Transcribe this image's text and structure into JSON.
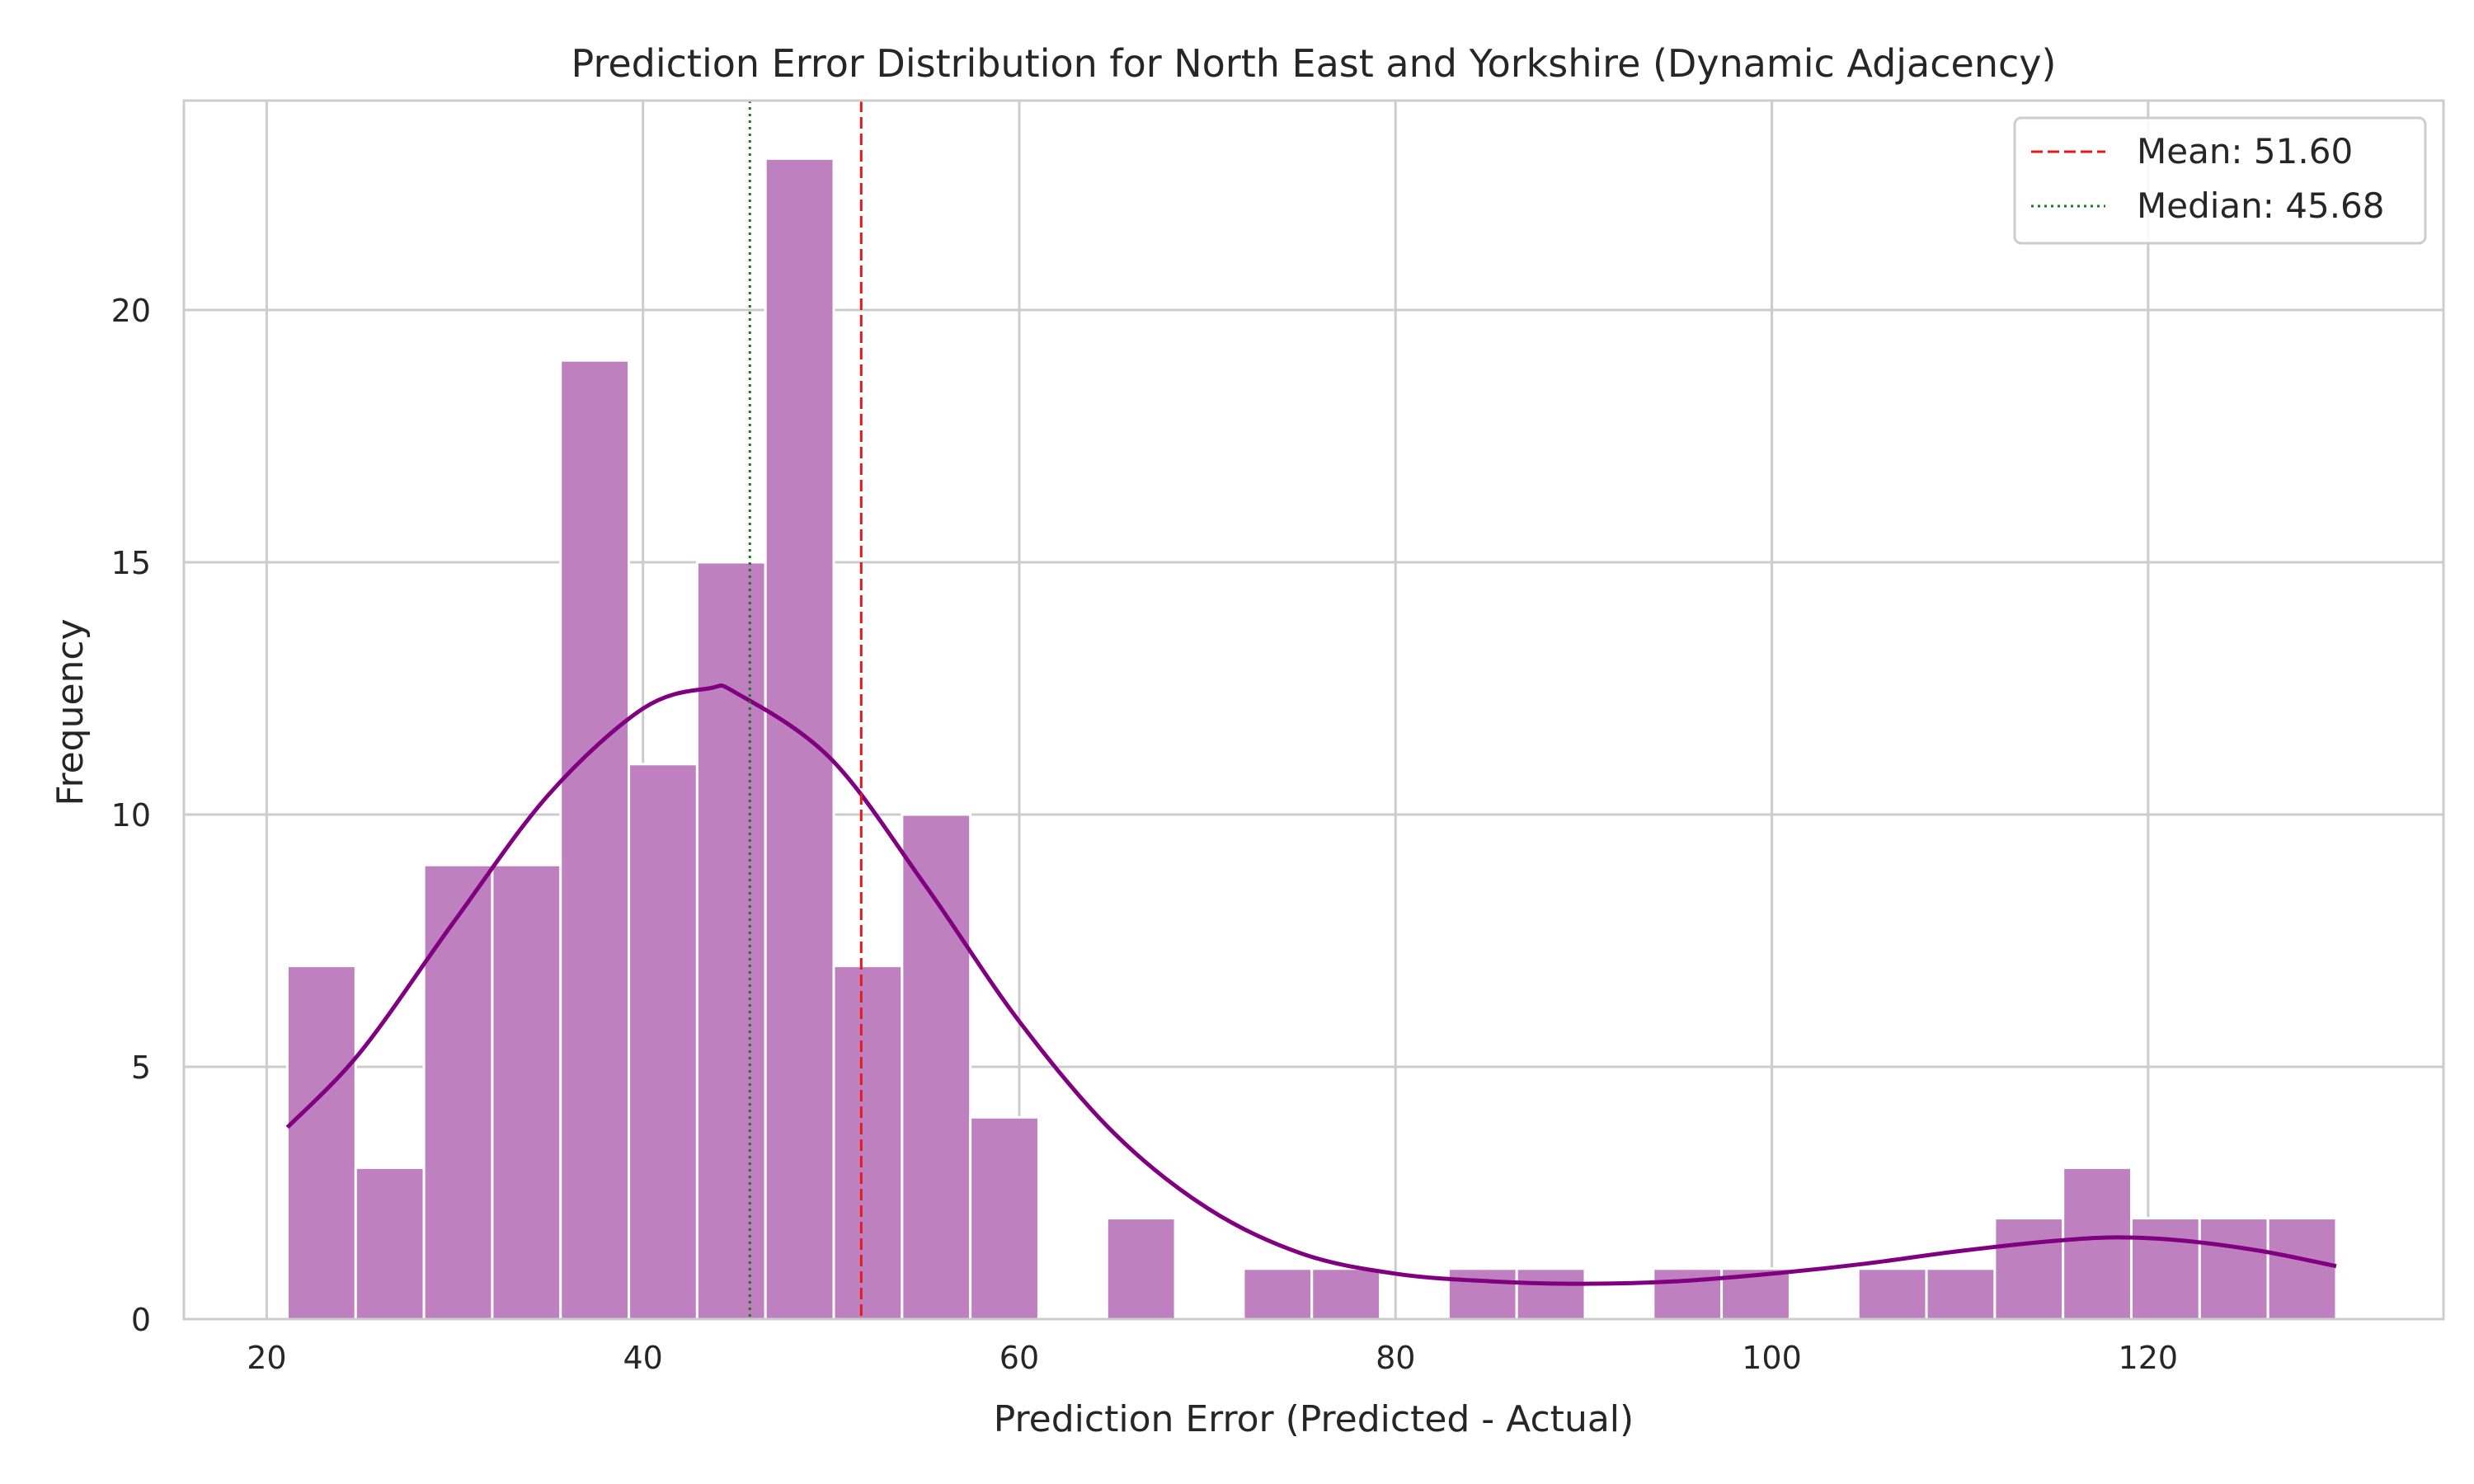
{
  "chart_data": {
    "type": "bar",
    "title": "Prediction Error Distribution for North East and Yorkshire (Dynamic Adjacency)",
    "xlabel": "Prediction Error (Predicted - Actual)",
    "ylabel": "Frequency",
    "xlim": [
      15.6,
      135.7
    ],
    "ylim": [
      0,
      24.15
    ],
    "xticks": [
      20,
      40,
      60,
      80,
      100,
      120
    ],
    "yticks": [
      0,
      5,
      10,
      15,
      20
    ],
    "grid": true,
    "legend_position": "top-right",
    "bin_start": 21.1,
    "bin_width": 3.63,
    "bin_counts": [
      7,
      3,
      9,
      9,
      19,
      11,
      15,
      23,
      7,
      10,
      4,
      0,
      2,
      0,
      1,
      1,
      0,
      1,
      1,
      0,
      1,
      1,
      0,
      1,
      1,
      2,
      3,
      2,
      2,
      2
    ],
    "bar_color": "#bf80bf",
    "kde": {
      "color": "#800080",
      "x": [
        21.1,
        25,
        30,
        35,
        40,
        43.5,
        45,
        50,
        55,
        60,
        65,
        70,
        75,
        80,
        85,
        90,
        95,
        100,
        105,
        110,
        115,
        118.5,
        122,
        126,
        130
      ],
      "y": [
        3.8,
        5.3,
        7.9,
        10.4,
        12.1,
        12.5,
        12.4,
        11.1,
        8.6,
        5.9,
        3.7,
        2.2,
        1.3,
        0.9,
        0.75,
        0.7,
        0.75,
        0.9,
        1.1,
        1.35,
        1.55,
        1.62,
        1.55,
        1.35,
        1.05
      ]
    },
    "reference_lines": [
      {
        "name": "Mean: 51.60",
        "value": 51.6,
        "color": "#e31a1c",
        "style": "dashed"
      },
      {
        "name": "Median: 45.68",
        "value": 45.68,
        "color": "#1a7a1a",
        "style": "dotted"
      }
    ]
  }
}
